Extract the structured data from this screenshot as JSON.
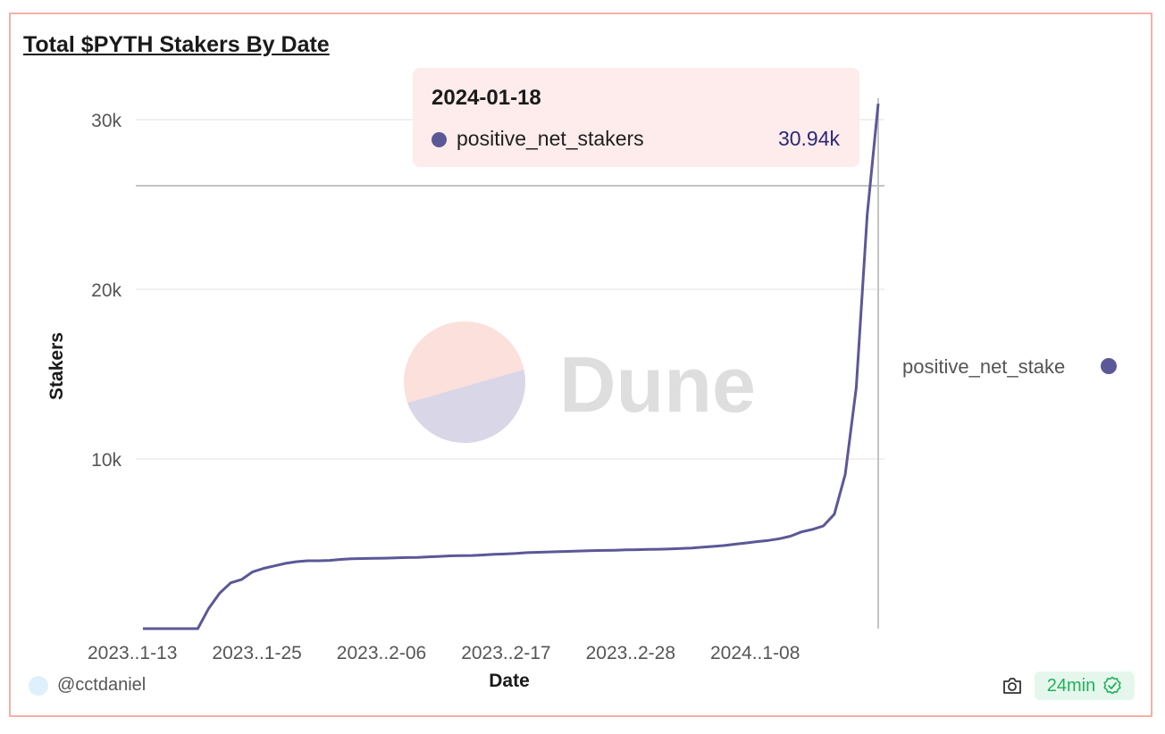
{
  "chart_data": {
    "type": "line",
    "title": "Total $PYTH Stakers By Date",
    "xlabel": "Date",
    "ylabel": "Stakers",
    "ylim": [
      0,
      31000
    ],
    "y_ticks": [
      10000,
      20000,
      30000
    ],
    "y_tick_labels": [
      "10k",
      "20k",
      "30k"
    ],
    "x_tick_labels": [
      "2023..1-13",
      "2023..1-25",
      "2023..2-06",
      "2023..2-17",
      "2023..2-28",
      "2024..1-08"
    ],
    "grid": true,
    "legend": "right",
    "series": [
      {
        "name": "positive_net_stakers",
        "color": "#5b5897",
        "values": [
          0,
          0,
          0,
          0,
          0,
          0,
          1200,
          2100,
          2700,
          2900,
          3350,
          3550,
          3700,
          3850,
          3950,
          4000,
          4000,
          4020,
          4080,
          4120,
          4130,
          4140,
          4150,
          4170,
          4190,
          4200,
          4230,
          4260,
          4290,
          4300,
          4310,
          4340,
          4380,
          4400,
          4430,
          4480,
          4500,
          4520,
          4540,
          4560,
          4580,
          4600,
          4610,
          4620,
          4640,
          4650,
          4670,
          4680,
          4700,
          4720,
          4750,
          4800,
          4850,
          4900,
          4980,
          5050,
          5130,
          5200,
          5300,
          5450,
          5700,
          5850,
          6050,
          6750,
          9100,
          14200,
          24400,
          30940
        ]
      }
    ]
  },
  "tooltip": {
    "date": "2024-01-18",
    "series": "positive_net_stakers",
    "value": "30.94k"
  },
  "legend_label": "positive_net_stake",
  "watermark": "Dune",
  "footer": {
    "author": "@cctdaniel",
    "freshness": "24min"
  },
  "icons": [
    "camera-icon",
    "check-badge-icon"
  ]
}
